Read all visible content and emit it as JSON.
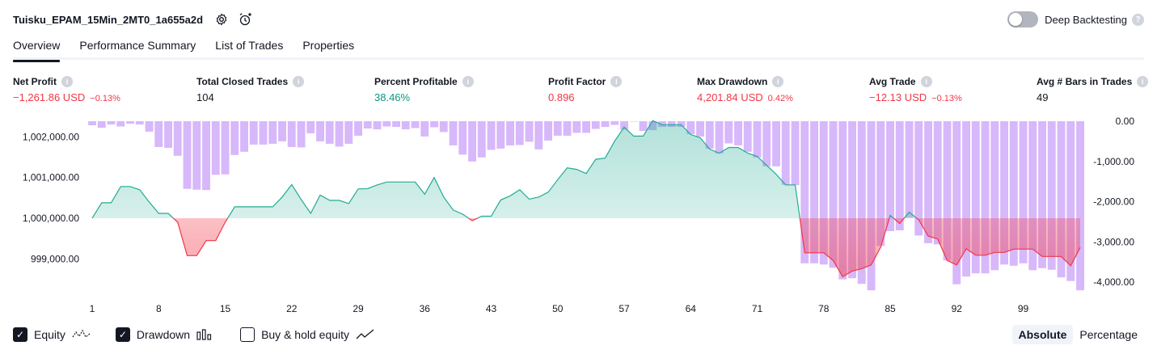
{
  "header": {
    "strategy_title": "Tuisku_EPAM_15Min_2MT0_1a655a2d",
    "settings_icon": "gear-icon",
    "add_alert_icon": "add-alert-clock-icon",
    "deep_backtesting_label": "Deep Backtesting",
    "deep_backtesting_enabled": false,
    "help_glyph": "?"
  },
  "tabs": [
    {
      "label": "Overview",
      "active": true
    },
    {
      "label": "Performance Summary",
      "active": false
    },
    {
      "label": "List of Trades",
      "active": false
    },
    {
      "label": "Properties",
      "active": false
    }
  ],
  "metrics": [
    {
      "label": "Net Profit",
      "value": "−1,261.86 USD",
      "pct": "−0.13%",
      "tone": "neg"
    },
    {
      "label": "Total Closed Trades",
      "value": "104",
      "pct": "",
      "tone": "neu"
    },
    {
      "label": "Percent Profitable",
      "value": "38.46%",
      "pct": "",
      "tone": "pos"
    },
    {
      "label": "Profit Factor",
      "value": "0.896",
      "pct": "",
      "tone": "neg"
    },
    {
      "label": "Max Drawdown",
      "value": "4,201.84 USD",
      "pct": "0.42%",
      "tone": "neg"
    },
    {
      "label": "Avg Trade",
      "value": "−12.13 USD",
      "pct": "−0.13%",
      "tone": "neg"
    },
    {
      "label": "Avg # Bars in Trades",
      "value": "49",
      "pct": "",
      "tone": "neu"
    }
  ],
  "info_glyph": "i",
  "colors": {
    "drawdown_bar": "#d7b8fa",
    "equity_line_up": "#22ab94",
    "equity_fill_up": "#cdeee4",
    "equity_line_down": "#f23645",
    "equity_fill_down": "#f7a7b3",
    "negative": "#f23645",
    "positive": "#089981"
  },
  "chart_data": {
    "type": "area",
    "left_axis": {
      "ticks": [
        "1,002,000.00",
        "1,001,000.00",
        "1,000,000.00",
        "999,000.00"
      ],
      "tick_values": [
        1002000,
        1001000,
        1000000,
        999000
      ]
    },
    "right_axis": {
      "ticks": [
        "0.00",
        "-1,000.00",
        "-2,000.00",
        "-3,000.00",
        "-4,000.00"
      ],
      "tick_values": [
        0,
        -1000,
        -2000,
        -3000,
        -4000
      ]
    },
    "x_ticks": [
      "1",
      "8",
      "15",
      "22",
      "29",
      "36",
      "43",
      "50",
      "57",
      "64",
      "71",
      "78",
      "85",
      "92",
      "99"
    ],
    "x_range": [
      1,
      105
    ],
    "baseline": 1000000,
    "equity_series": {
      "name": "Equity",
      "x": [
        1,
        2,
        3,
        4,
        5,
        6,
        7,
        8,
        9,
        10,
        11,
        12,
        13,
        14,
        15,
        16,
        17,
        18,
        19,
        20,
        21,
        22,
        23,
        24,
        25,
        26,
        27,
        28,
        29,
        30,
        31,
        32,
        33,
        34,
        35,
        36,
        37,
        38,
        39,
        40,
        41,
        42,
        43,
        44,
        45,
        46,
        47,
        48,
        49,
        50,
        51,
        52,
        53,
        54,
        55,
        56,
        57,
        58,
        59,
        60,
        61,
        62,
        63,
        64,
        65,
        66,
        67,
        68,
        69,
        70,
        71,
        72,
        73,
        74,
        75,
        76,
        77,
        78,
        79,
        80,
        81,
        82,
        83,
        84,
        85,
        86,
        87,
        88,
        89,
        90,
        91,
        92,
        93,
        94,
        95,
        96,
        97,
        98,
        99,
        100,
        101,
        102,
        103,
        104,
        105
      ],
      "values": [
        1000000,
        1000380,
        1000380,
        1000780,
        1000780,
        1000700,
        1000400,
        1000120,
        1000120,
        999900,
        999080,
        999080,
        999450,
        999450,
        999900,
        1000280,
        1000280,
        1000280,
        1000280,
        1000280,
        1000520,
        1000830,
        1000460,
        1000120,
        1000570,
        1000440,
        1000440,
        1000360,
        1000720,
        1000730,
        1000820,
        1000890,
        1000890,
        1000890,
        1000890,
        1000590,
        1001000,
        1000520,
        1000200,
        1000100,
        999940,
        1000050,
        1000050,
        1000450,
        1000550,
        1000700,
        1000470,
        1000520,
        1000640,
        1000950,
        1001240,
        1001200,
        1001100,
        1001450,
        1001480,
        1001900,
        1002240,
        1002020,
        1002020,
        1002400,
        1002300,
        1002300,
        1002300,
        1002060,
        1001980,
        1001700,
        1001600,
        1001740,
        1001740,
        1001600,
        1001520,
        1001300,
        1001080,
        1000820,
        1000820,
        999150,
        999150,
        999150,
        998960,
        998560,
        998700,
        998760,
        998850,
        999290,
        1000070,
        999870,
        1000150,
        999960,
        999560,
        999490,
        998960,
        998850,
        999250,
        999090,
        999090,
        999160,
        999160,
        999240,
        999240,
        999240,
        999060,
        999060,
        999060,
        998830,
        999280
      ]
    },
    "drawdown_series": {
      "name": "Drawdown",
      "values": [
        -100,
        -160,
        -80,
        -130,
        -60,
        -80,
        -260,
        -640,
        -660,
        -860,
        -1680,
        -1700,
        -1710,
        -1330,
        -1320,
        -840,
        -760,
        -580,
        -580,
        -560,
        -500,
        -640,
        -650,
        -300,
        -500,
        -560,
        -630,
        -560,
        -360,
        -180,
        -200,
        -130,
        -140,
        -200,
        -170,
        -380,
        -150,
        -270,
        -600,
        -830,
        -1000,
        -900,
        -710,
        -680,
        -600,
        -590,
        -510,
        -700,
        -480,
        -360,
        -360,
        -290,
        -290,
        -190,
        -140,
        -90,
        -210,
        0,
        -240,
        -220,
        -140,
        -140,
        -140,
        -320,
        -380,
        -680,
        -800,
        -550,
        -600,
        -760,
        -900,
        -1120,
        -1120,
        -1580,
        -1590,
        -3530,
        -3530,
        -3560,
        -3640,
        -3930,
        -3900,
        -4040,
        -4200,
        -3100,
        -2730,
        -2710,
        -2400,
        -2840,
        -3030,
        -3060,
        -3460,
        -4050,
        -3860,
        -3780,
        -3780,
        -3700,
        -3560,
        -3590,
        -3530,
        -3700,
        -3650,
        -3690,
        -3880,
        -3970,
        -4200
      ]
    }
  },
  "legend": {
    "equity_label": "Equity",
    "equity_checked": true,
    "drawdown_label": "Drawdown",
    "drawdown_checked": true,
    "buyhold_label": "Buy & hold equity",
    "buyhold_checked": false,
    "check_glyph": "✓"
  },
  "view_toggle": {
    "absolute_label": "Absolute",
    "percentage_label": "Percentage",
    "selected": "Absolute"
  }
}
